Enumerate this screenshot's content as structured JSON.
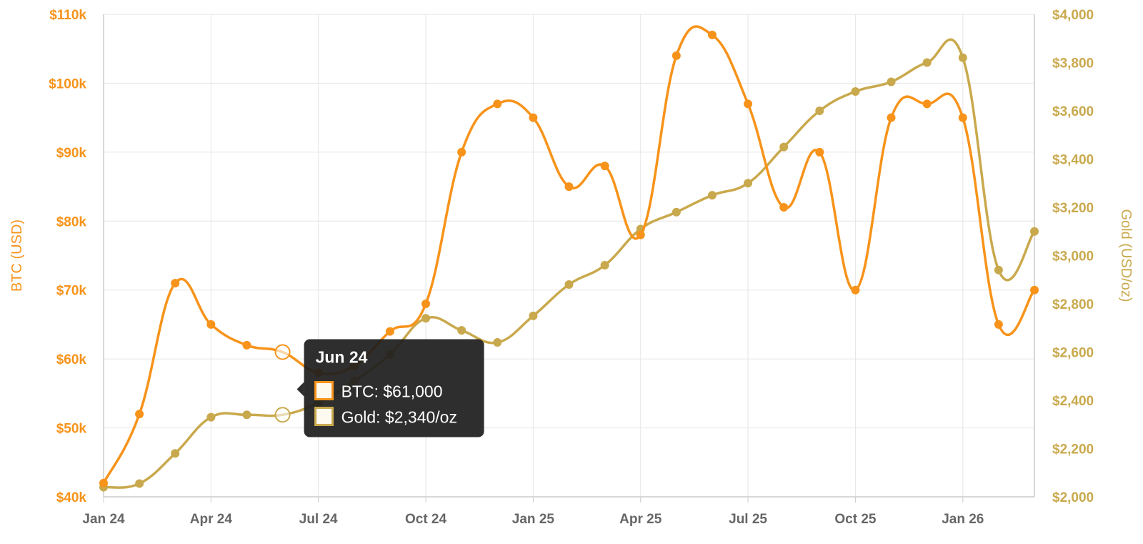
{
  "chart_data": {
    "type": "line",
    "categories": [
      "Jan 24",
      "Feb 24",
      "Mar 24",
      "Apr 24",
      "May 24",
      "Jun 24",
      "Jul 24",
      "Aug 24",
      "Sep 24",
      "Oct 24",
      "Nov 24",
      "Dec 24",
      "Jan 25",
      "Feb 25",
      "Mar 25",
      "Apr 25",
      "May 25",
      "Jun 25",
      "Jul 25",
      "Aug 25",
      "Sep 25",
      "Oct 25",
      "Nov 25",
      "Dec 25",
      "Jan 26",
      "Feb 26",
      "Mar 26"
    ],
    "x_tick_labels": [
      "Jan 24",
      "Apr 24",
      "Jul 24",
      "Oct 24",
      "Jan 25",
      "Apr 25",
      "Jul 25",
      "Oct 25",
      "Jan 26"
    ],
    "series": [
      {
        "name": "BTC",
        "axis": "left",
        "color": "#f7931a",
        "values": [
          42000,
          52000,
          71000,
          65000,
          62000,
          61000,
          58000,
          59000,
          64000,
          68000,
          90000,
          97000,
          95000,
          85000,
          88000,
          78000,
          104000,
          107000,
          97000,
          82000,
          90000,
          70000,
          95000,
          97000,
          95000,
          65000,
          70000
        ]
      },
      {
        "name": "Gold",
        "axis": "right",
        "color": "#c9a94d",
        "values": [
          2040,
          2055,
          2180,
          2330,
          2340,
          2340,
          2390,
          2480,
          2590,
          2740,
          2690,
          2640,
          2750,
          2880,
          2960,
          3110,
          3180,
          3250,
          3300,
          3450,
          3600,
          3680,
          3720,
          3800,
          3820,
          2940,
          3100
        ]
      }
    ],
    "y_left": {
      "label": "BTC (USD)",
      "ylim": [
        40000,
        110000
      ],
      "ticks": [
        40000,
        50000,
        60000,
        70000,
        80000,
        90000,
        100000,
        110000
      ],
      "tick_labels": [
        "$40k",
        "$50k",
        "$60k",
        "$70k",
        "$80k",
        "$90k",
        "$100k",
        "$110k"
      ]
    },
    "y_right": {
      "label": "Gold (USD/oz)",
      "ylim": [
        2000,
        4000
      ],
      "ticks": [
        2000,
        2200,
        2400,
        2600,
        2800,
        3000,
        3200,
        3400,
        3600,
        3800,
        4000
      ],
      "tick_labels": [
        "$2,000",
        "$2,200",
        "$2,400",
        "$2,600",
        "$2,800",
        "$3,000",
        "$3,200",
        "$3,400",
        "$3,600",
        "$3,800",
        "$4,000"
      ]
    },
    "grid": true,
    "legend": "none",
    "tooltip": {
      "index": 5,
      "title": "Jun 24",
      "lines": [
        {
          "series": "BTC",
          "text": "BTC: $61,000",
          "color": "#f7931a"
        },
        {
          "series": "Gold",
          "text": "Gold: $2,340/oz",
          "color": "#c9a94d"
        }
      ]
    }
  }
}
